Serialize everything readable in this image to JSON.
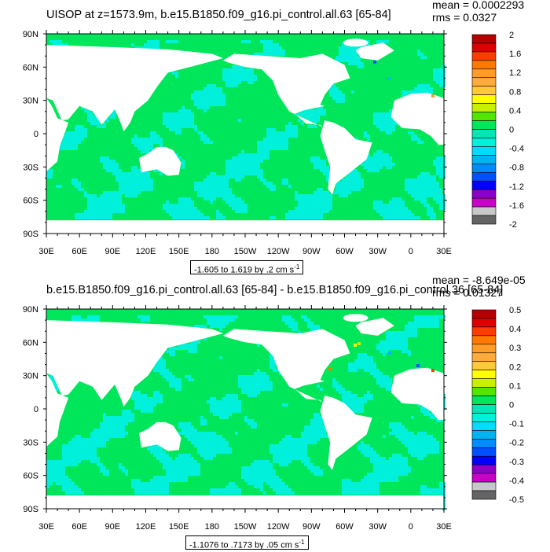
{
  "panels": [
    {
      "title": "UISOP at z=1573.9m, b.e15.B1850.f09_g16.pi_control.all.63 [65-84]",
      "stats": [
        "mean = 0.0002293",
        "rms = 0.0327"
      ],
      "range_label": "-1.605 to 1.619 by .2 cm s",
      "range_sup": "-1",
      "colorbar": {
        "labels": [
          "2",
          "1.6",
          "1.2",
          "0.8",
          "0.4",
          "0",
          "-0.4",
          "-0.8",
          "-1.2",
          "-1.6",
          "-2"
        ],
        "colors": [
          "#b40000",
          "#dc0000",
          "#ff3c00",
          "#ff7800",
          "#ff9c28",
          "#ffaa3c",
          "#ffc83c",
          "#ffff00",
          "#c8f000",
          "#50e600",
          "#00e65a",
          "#00e6b4",
          "#00f0dc",
          "#00dcff",
          "#00b4f0",
          "#008cff",
          "#0050ff",
          "#0000ff",
          "#8c00c8",
          "#c800c8",
          "#c8c8c8",
          "#646464"
        ]
      }
    },
    {
      "title": "b.e15.B1850.f09_g16.pi_control.all.63 [65-84] - b.e15.B1850.f09_g16.pi_control.36 [65-84]",
      "stats": [
        "mean = -8.649e-05",
        "rms = 0.01327"
      ],
      "range_label": "-1.1076 to .7173 by .05 cm s",
      "range_sup": "-1",
      "colorbar": {
        "labels": [
          "0.5",
          "0.4",
          "0.3",
          "0.2",
          "0.1",
          "0",
          "-0.1",
          "-0.2",
          "-0.3",
          "-0.4",
          "-0.5"
        ],
        "colors": [
          "#b40000",
          "#dc0000",
          "#ff3c00",
          "#ff7800",
          "#ff9c28",
          "#ffaa3c",
          "#ffc83c",
          "#ffff00",
          "#c8f000",
          "#50e600",
          "#00e65a",
          "#00e6b4",
          "#00f0dc",
          "#00dcff",
          "#00b4f0",
          "#008cff",
          "#0050ff",
          "#0000ff",
          "#8c00c8",
          "#c800c8",
          "#c8c8c8",
          "#646464"
        ]
      }
    }
  ],
  "chart_data": [
    {
      "type": "heatmap",
      "title": "UISOP at z=1573.9m, b.e15.B1850.f09_g16.pi_control.all.63 [65-84]",
      "x_tick_labels": [
        "30E",
        "60E",
        "90E",
        "120E",
        "150E",
        "180",
        "150W",
        "120W",
        "90W",
        "60W",
        "30W",
        "0",
        "30E"
      ],
      "y_tick_labels": [
        "90N",
        "60N",
        "30N",
        "0",
        "30S",
        "60S",
        "90S"
      ],
      "xlim": [
        30,
        390
      ],
      "ylim": [
        -90,
        90
      ],
      "color_levels": [
        -2,
        -1.6,
        -1.2,
        -0.8,
        -0.4,
        0,
        0.4,
        0.8,
        1.2,
        1.6,
        2
      ],
      "mean": 0.0002293,
      "rms": 0.0327,
      "data_range": [
        -1.605,
        1.619
      ],
      "contour_interval": 0.2,
      "units": "cm s-1"
    },
    {
      "type": "heatmap",
      "title": "b.e15.B1850.f09_g16.pi_control.all.63 [65-84] - b.e15.B1850.f09_g16.pi_control.36 [65-84]",
      "x_tick_labels": [
        "30E",
        "60E",
        "90E",
        "120E",
        "150E",
        "180",
        "150W",
        "120W",
        "90W",
        "60W",
        "30W",
        "0",
        "30E"
      ],
      "y_tick_labels": [
        "90N",
        "60N",
        "30N",
        "0",
        "30S",
        "60S",
        "90S"
      ],
      "xlim": [
        30,
        390
      ],
      "ylim": [
        -90,
        90
      ],
      "color_levels": [
        -0.5,
        -0.4,
        -0.3,
        -0.2,
        -0.1,
        0,
        0.1,
        0.2,
        0.3,
        0.4,
        0.5
      ],
      "mean": -8.649e-05,
      "rms": 0.01327,
      "data_range": [
        -1.1076,
        0.7173
      ],
      "contour_interval": 0.05,
      "units": "cm s-1"
    }
  ]
}
